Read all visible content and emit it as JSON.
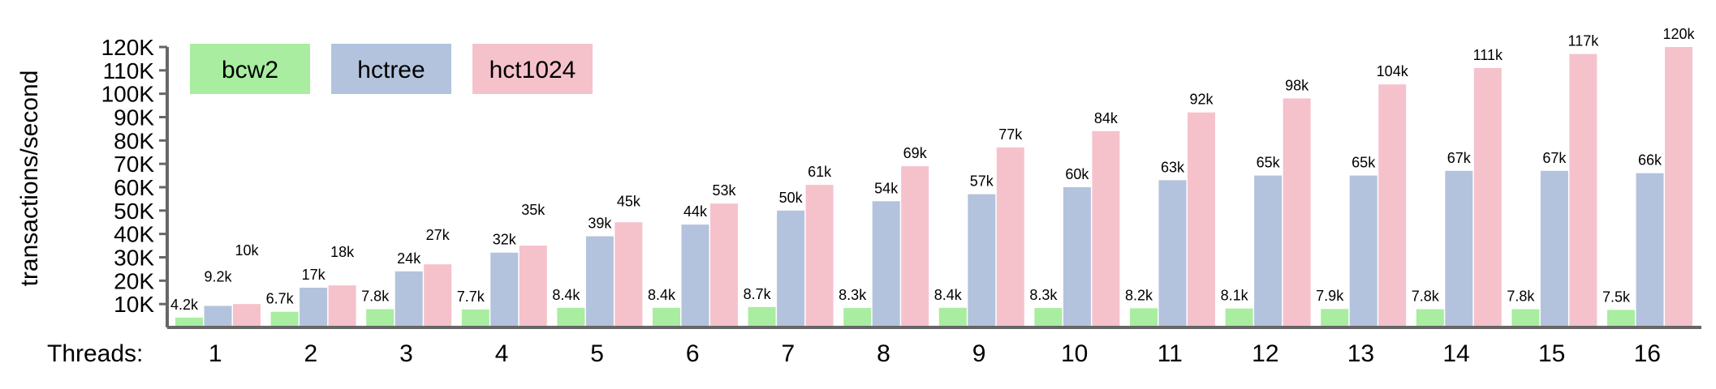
{
  "chart_data": {
    "type": "bar",
    "title": "",
    "xlabel": "Threads:",
    "ylabel": "transactions/second",
    "categories": [
      "1",
      "2",
      "3",
      "4",
      "5",
      "6",
      "7",
      "8",
      "9",
      "10",
      "11",
      "12",
      "13",
      "14",
      "15",
      "16"
    ],
    "ylim": [
      0,
      120000
    ],
    "yticks": [
      10000,
      20000,
      30000,
      40000,
      50000,
      60000,
      70000,
      80000,
      90000,
      100000,
      110000,
      120000
    ],
    "ytick_labels": [
      "10K",
      "20K",
      "30K",
      "40K",
      "50K",
      "60K",
      "70K",
      "80K",
      "90K",
      "100K",
      "110K",
      "120K"
    ],
    "grid": false,
    "legend_position": "top-left",
    "series": [
      {
        "name": "bcw2",
        "color": "#a8eda0",
        "values": [
          4200,
          6700,
          7800,
          7700,
          8400,
          8400,
          8700,
          8300,
          8400,
          8300,
          8200,
          8100,
          7900,
          7800,
          7800,
          7500
        ],
        "labels": [
          "4.2k",
          "6.7k",
          "7.8k",
          "7.7k",
          "8.4k",
          "8.4k",
          "8.7k",
          "8.3k",
          "8.4k",
          "8.3k",
          "8.2k",
          "8.1k",
          "7.9k",
          "7.8k",
          "7.8k",
          "7.5k"
        ]
      },
      {
        "name": "hctree",
        "color": "#b3c3dd",
        "values": [
          9200,
          17000,
          24000,
          32000,
          39000,
          44000,
          50000,
          54000,
          57000,
          60000,
          63000,
          65000,
          65000,
          67000,
          67000,
          66000
        ],
        "labels": [
          "9.2k",
          "17k",
          "24k",
          "32k",
          "39k",
          "44k",
          "50k",
          "54k",
          "57k",
          "60k",
          "63k",
          "65k",
          "65k",
          "67k",
          "67k",
          "66k"
        ]
      },
      {
        "name": "hct1024",
        "color": "#f5c2cc",
        "values": [
          10000,
          18000,
          27000,
          35000,
          45000,
          53000,
          61000,
          69000,
          77000,
          84000,
          92000,
          98000,
          104000,
          111000,
          117000,
          120000
        ],
        "labels": [
          "10k",
          "18k",
          "27k",
          "35k",
          "45k",
          "53k",
          "61k",
          "69k",
          "77k",
          "84k",
          "92k",
          "98k",
          "104k",
          "111k",
          "117k",
          "120k"
        ]
      }
    ]
  }
}
